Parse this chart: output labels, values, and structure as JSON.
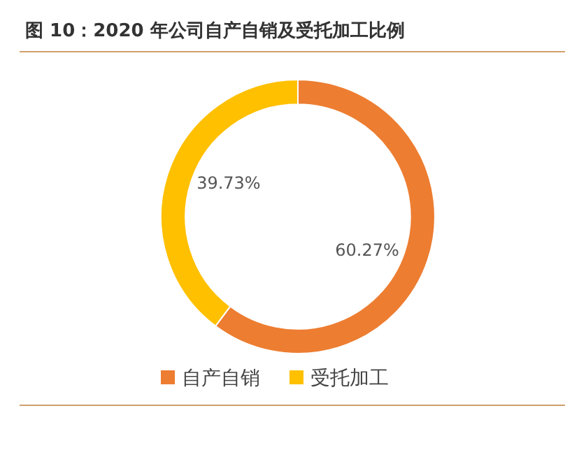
{
  "chart_data": {
    "type": "donut",
    "title": "图 10：2020 年公司自产自销及受托加工比例",
    "categories": [
      "自产自销",
      "受托加工"
    ],
    "values": [
      60.27,
      39.73
    ],
    "value_labels": [
      "60.27%",
      "39.73%"
    ],
    "colors": [
      "#ed7d31",
      "#ffc000"
    ],
    "legend": "bottom"
  }
}
